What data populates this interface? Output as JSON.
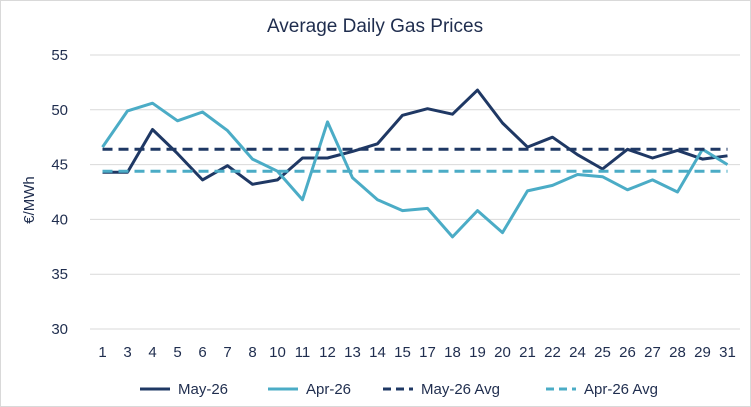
{
  "chart_data": {
    "type": "line",
    "title": "Average Daily Gas Prices",
    "xlabel": "",
    "ylabel": "€/MWh",
    "ylim": [
      30,
      55
    ],
    "yticks": [
      30,
      35,
      40,
      45,
      50,
      55
    ],
    "categories": [
      "1",
      "3",
      "4",
      "5",
      "6",
      "7",
      "8",
      "10",
      "11",
      "12",
      "13",
      "14",
      "15",
      "17",
      "18",
      "19",
      "20",
      "21",
      "22",
      "24",
      "25",
      "26",
      "27",
      "28",
      "29",
      "31"
    ],
    "grid": "horizontal",
    "legend_position": "bottom",
    "series": [
      {
        "name": "May-26",
        "color": "#1f3864",
        "dash": "solid",
        "values": [
          44.3,
          44.3,
          48.2,
          46.0,
          43.6,
          44.9,
          43.2,
          43.6,
          45.6,
          45.6,
          46.2,
          46.9,
          49.5,
          50.1,
          49.6,
          51.8,
          48.8,
          46.6,
          47.5,
          45.9,
          44.6,
          46.4,
          45.6,
          46.3,
          45.5,
          45.8
        ]
      },
      {
        "name": "Apr-26",
        "color": "#4bacc6",
        "dash": "solid",
        "values": [
          46.6,
          49.9,
          50.6,
          49.0,
          49.8,
          48.1,
          45.5,
          44.4,
          41.8,
          48.9,
          43.8,
          41.8,
          40.8,
          41.0,
          38.4,
          40.8,
          38.8,
          42.6,
          43.1,
          44.1,
          43.9,
          42.7,
          43.6,
          42.5,
          46.4,
          45.0
        ]
      },
      {
        "name": "May-26 Avg",
        "color": "#1f3864",
        "dash": "dashed",
        "constant": 46.4
      },
      {
        "name": "Apr-26 Avg",
        "color": "#4bacc6",
        "dash": "dashed",
        "constant": 44.4
      }
    ]
  }
}
